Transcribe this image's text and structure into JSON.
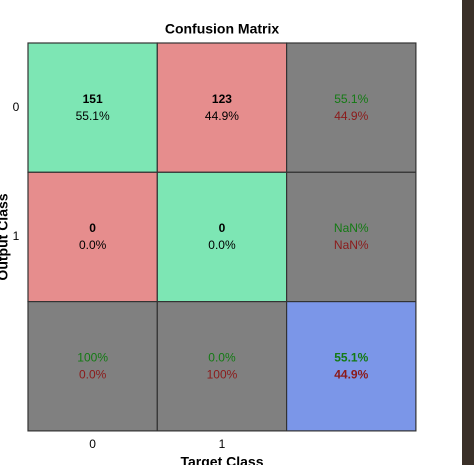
{
  "chart_data": {
    "type": "confusion_matrix",
    "title": "Confusion Matrix",
    "xlabel": "Target Class",
    "ylabel": "Output Class",
    "x_categories": [
      "0",
      "1"
    ],
    "y_categories": [
      "0",
      "1"
    ],
    "counts": [
      [
        151,
        123
      ],
      [
        0,
        0
      ]
    ],
    "percents": [
      [
        55.1,
        44.9
      ],
      [
        0.0,
        0.0
      ]
    ],
    "percent_labels": [
      [
        "55.1%",
        "44.9%"
      ],
      [
        "0.0%",
        "0.0%"
      ]
    ],
    "row_summary": [
      {
        "correct": "55.1%",
        "wrong": "44.9%"
      },
      {
        "correct": "NaN%",
        "wrong": "NaN%"
      }
    ],
    "col_summary": [
      {
        "correct": "100%",
        "wrong": "0.0%"
      },
      {
        "correct": "0.0%",
        "wrong": "100%"
      }
    ],
    "overall": {
      "correct": "55.1%",
      "wrong": "44.9%"
    },
    "colors": {
      "correct_cell": "#7de6b4",
      "wrong_cell": "#e68d8d",
      "summary_cell": "#808080",
      "overall_cell": "#7b96e8",
      "correct_text": "#137a13",
      "wrong_text": "#8b1a1a"
    }
  }
}
